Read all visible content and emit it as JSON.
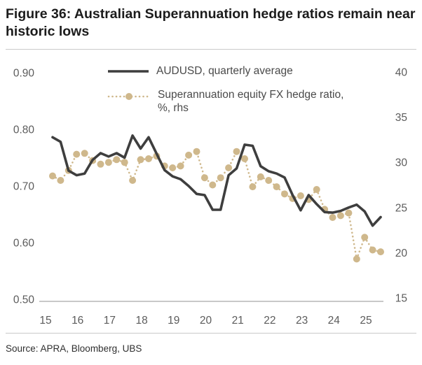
{
  "title": "Figure 36: Australian Superannuation hedge ratios remain near historic lows",
  "source": "Source: APRA, Bloomberg, UBS",
  "legend": {
    "series1": "AUDUSD, quarterly average",
    "series2_line1": "Superannuation equity FX hedge ratio,",
    "series2_line2": "%, rhs"
  },
  "colors": {
    "audusd": "#3e3e3e",
    "hedge": "#cfb88c",
    "axis_text": "#5c5c5c",
    "axis_line": "#b5b5b5",
    "rule": "#c9c9c9",
    "title_text": "#1c1c1c",
    "legend_text": "#4a4a4a",
    "source_text": "#2f2f2f"
  },
  "chart_data": {
    "type": "line",
    "title": "Figure 36: Australian Superannuation hedge ratios remain near historic lows",
    "x_tick_labels": [
      "15",
      "16",
      "17",
      "18",
      "19",
      "20",
      "21",
      "22",
      "23",
      "24",
      "25"
    ],
    "x_start": "2015Q1",
    "frequency": "quarterly",
    "grid": false,
    "legend_position": "top",
    "left_axis": {
      "min": 0.5,
      "max": 0.9,
      "ticks": [
        "0.90",
        "0.80",
        "0.70",
        "0.60",
        "0.50"
      ]
    },
    "right_axis": {
      "min": 15,
      "max": 40,
      "ticks": [
        "40",
        "35",
        "30",
        "25",
        "20",
        "15"
      ]
    },
    "series": [
      {
        "name": "AUDUSD, quarterly average",
        "axis": "left",
        "style": "solid",
        "values": [
          0.786,
          0.778,
          0.727,
          0.719,
          0.722,
          0.746,
          0.758,
          0.752,
          0.758,
          0.75,
          0.789,
          0.766,
          0.786,
          0.757,
          0.728,
          0.717,
          0.712,
          0.7,
          0.686,
          0.684,
          0.658,
          0.658,
          0.719,
          0.731,
          0.773,
          0.771,
          0.735,
          0.726,
          0.722,
          0.715,
          0.684,
          0.657,
          0.684,
          0.668,
          0.654,
          0.653,
          0.656,
          0.662,
          0.667,
          0.655,
          0.63,
          0.645
        ]
      },
      {
        "name": "Superannuation equity FX hedge ratio, %, rhs",
        "axis": "right",
        "style": "dotted-with-markers",
        "values": [
          28.5,
          28.0,
          29.1,
          30.9,
          31.0,
          30.2,
          29.8,
          30.0,
          30.3,
          30.0,
          28.0,
          30.3,
          30.4,
          30.7,
          29.6,
          29.4,
          29.6,
          30.8,
          31.2,
          28.3,
          27.5,
          28.3,
          29.4,
          31.2,
          30.4,
          27.3,
          28.4,
          28.0,
          27.3,
          26.5,
          26.0,
          26.3,
          25.9,
          27.0,
          24.8,
          23.9,
          24.1,
          24.4,
          19.3,
          21.7,
          20.3,
          20.1
        ]
      }
    ]
  }
}
